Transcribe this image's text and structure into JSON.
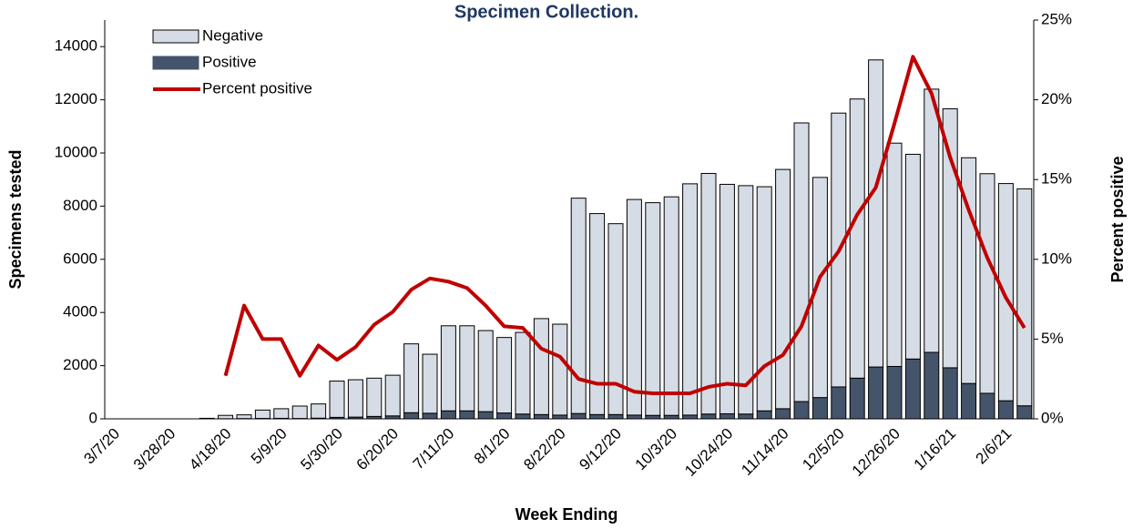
{
  "chart_data": {
    "type": "bar-line",
    "title": "Specimen Collection.",
    "x_label": "Week Ending",
    "y_label": "Specimens tested",
    "y2_label": "Percent positive",
    "categories": [
      "3/7/20",
      null,
      null,
      "3/28/20",
      null,
      null,
      "4/18/20",
      null,
      null,
      "5/9/20",
      null,
      null,
      "5/30/20",
      null,
      null,
      "6/20/20",
      null,
      null,
      "7/11/20",
      null,
      null,
      "8/1/20",
      null,
      null,
      "8/22/20",
      null,
      null,
      "9/12/20",
      null,
      null,
      "10/3/20",
      null,
      null,
      "10/24/20",
      null,
      null,
      "11/14/20",
      null,
      null,
      "12/5/20",
      null,
      null,
      "12/26/20",
      null,
      null,
      "1/16/21",
      null,
      null,
      "2/6/21",
      null
    ],
    "series": [
      {
        "name": "Negative",
        "type": "bar",
        "color": "#d6dce5",
        "values": [
          0,
          0,
          0,
          0,
          0,
          20,
          126,
          140,
          314,
          361,
          467,
          535,
          1365,
          1405,
          1440,
          1530,
          2590,
          2220,
          3200,
          3200,
          3050,
          2840,
          3070,
          3610,
          3420,
          8100,
          7560,
          7180,
          8110,
          8000,
          8220,
          8700,
          9050,
          8630,
          8590,
          8430,
          9000,
          10480,
          8280,
          10300,
          10500,
          11550,
          8400,
          7700,
          9900,
          9740,
          8490,
          8260,
          8170,
          8160
        ]
      },
      {
        "name": "Positive",
        "type": "bar",
        "color": "#44546a",
        "values": [
          0,
          0,
          0,
          0,
          0,
          0,
          4,
          10,
          16,
          19,
          13,
          25,
          55,
          65,
          90,
          110,
          230,
          210,
          300,
          300,
          270,
          220,
          180,
          160,
          140,
          200,
          160,
          160,
          140,
          130,
          130,
          140,
          180,
          190,
          180,
          300,
          380,
          650,
          800,
          1200,
          1530,
          1950,
          1970,
          2250,
          2500,
          1920,
          1330,
          960,
          680,
          490
        ]
      },
      {
        "name": "Percent positive",
        "type": "line",
        "axis": "y2",
        "color": "#c00000",
        "values": [
          null,
          null,
          null,
          null,
          null,
          null,
          2.7,
          7.1,
          5.0,
          5.0,
          2.7,
          4.6,
          3.7,
          4.5,
          5.9,
          6.7,
          8.1,
          8.8,
          8.6,
          8.2,
          7.1,
          5.8,
          5.7,
          4.4,
          3.9,
          2.5,
          2.2,
          2.2,
          1.7,
          1.6,
          1.6,
          1.6,
          2.0,
          2.2,
          2.1,
          3.3,
          4.0,
          5.8,
          8.9,
          10.5,
          12.8,
          14.5,
          18.5,
          22.7,
          20.4,
          16.4,
          13.1,
          10.1,
          7.6,
          5.7
        ]
      }
    ],
    "ylim": [
      0,
      15000
    ],
    "yticks": [
      0,
      2000,
      4000,
      6000,
      8000,
      10000,
      12000,
      14000
    ],
    "y2lim": [
      0,
      25
    ],
    "y2ticks": [
      {
        "value": 0,
        "label": "0%"
      },
      {
        "value": 5,
        "label": "5%"
      },
      {
        "value": 10,
        "label": "10%"
      },
      {
        "value": 15,
        "label": "15%"
      },
      {
        "value": 20,
        "label": "20%"
      },
      {
        "value": 25,
        "label": "25%"
      }
    ],
    "legend": "top-left",
    "grid": false
  }
}
